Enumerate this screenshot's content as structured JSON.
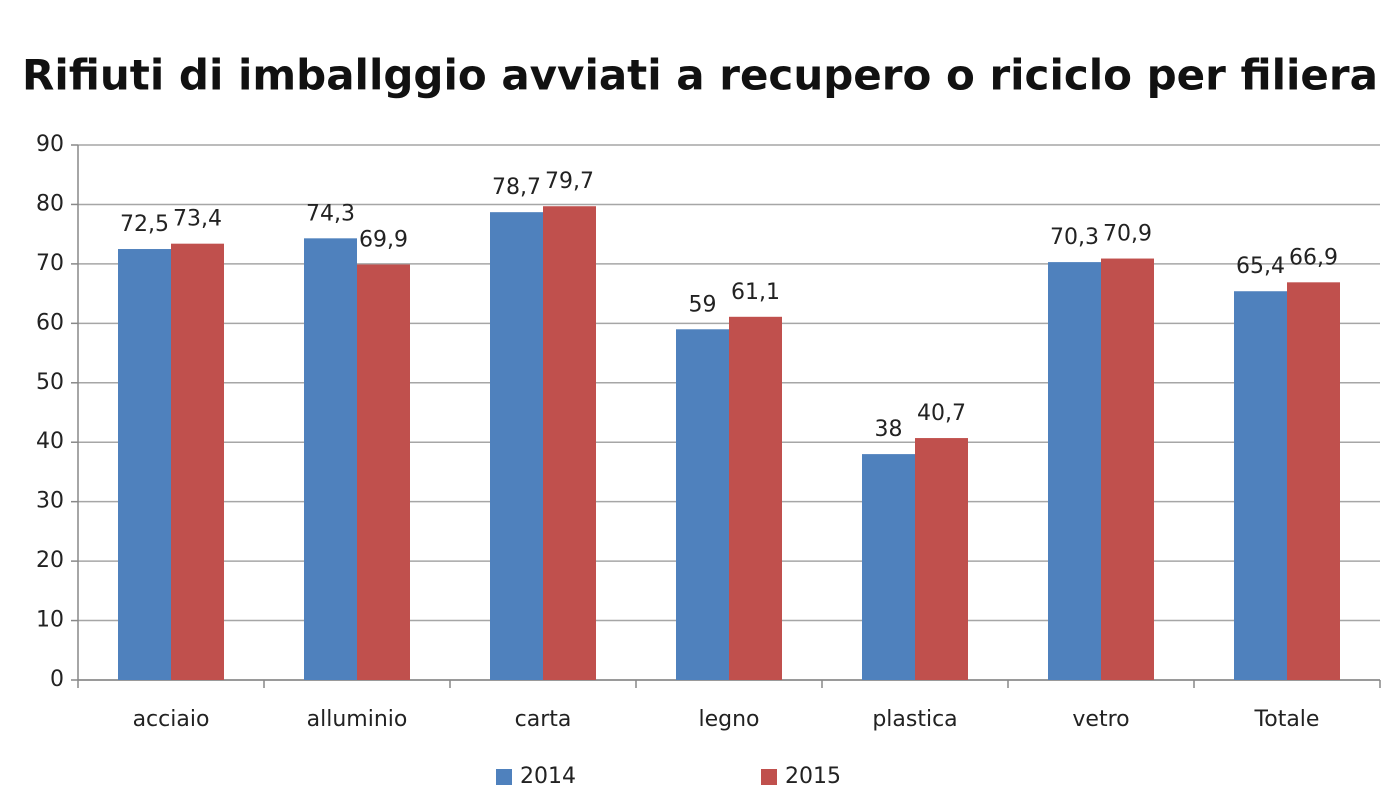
{
  "chart_data": {
    "type": "bar",
    "title": "Rifiuti di imballggio avviati a recupero o riciclo per filiera",
    "categories": [
      "acciaio",
      "alluminio",
      "carta",
      "legno",
      "plastica",
      "vetro",
      "Totale"
    ],
    "series": [
      {
        "name": "2014",
        "color": "#4f81bd",
        "values": [
          72.5,
          74.3,
          78.7,
          59,
          38,
          70.3,
          65.4
        ],
        "value_labels": [
          "72,5",
          "74,3",
          "78,7",
          "59",
          "38",
          "70,3",
          "65,4"
        ]
      },
      {
        "name": "2015",
        "color": "#c0504d",
        "values": [
          73.4,
          69.9,
          79.7,
          61.1,
          40.7,
          70.9,
          66.9
        ],
        "value_labels": [
          "73,4",
          "69,9",
          "79,7",
          "61,1",
          "40,7",
          "70,9",
          "66,9"
        ]
      }
    ],
    "ylim": [
      0,
      90
    ],
    "yticks": [
      0,
      10,
      20,
      30,
      40,
      50,
      60,
      70,
      80,
      90
    ],
    "grid": true,
    "legend": "bottom"
  }
}
